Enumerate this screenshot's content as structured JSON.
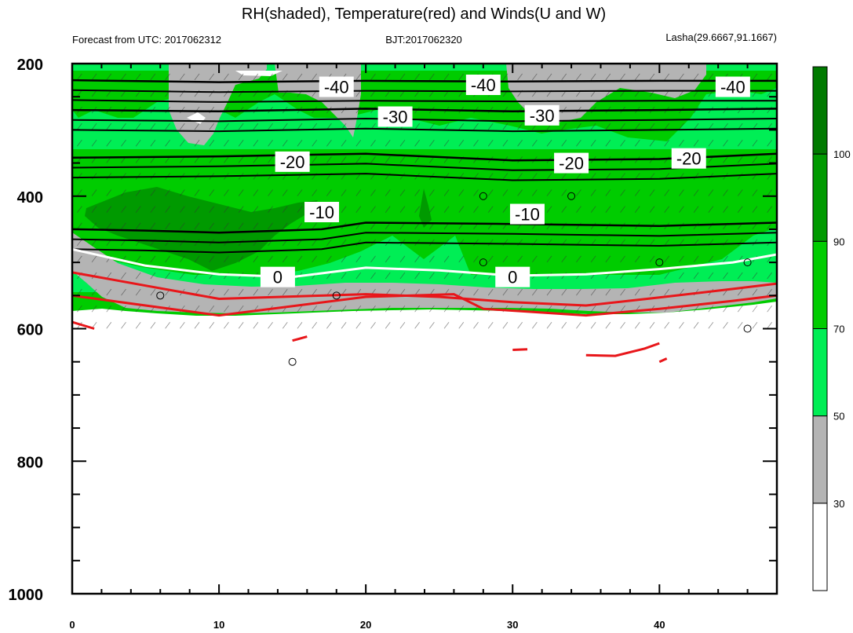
{
  "chart_data": {
    "type": "contour",
    "title": "RH(shaded), Temperature(red) and Winds(U and W)",
    "subtitle_left": "Forecast from UTC: 2017062312",
    "subtitle_center": "BJT:2017062320",
    "subtitle_right": "Lasha(29.6667,91.1667)",
    "x_ticks": [
      "0",
      "10",
      "20",
      "30",
      "40"
    ],
    "y_ticks": [
      "200",
      "400",
      "600",
      "800",
      "1000"
    ],
    "xlim": [
      0,
      48
    ],
    "ylim": [
      1000,
      200
    ],
    "colorbar": {
      "levels": [
        "30",
        "50",
        "70",
        "90",
        "100"
      ],
      "colors": [
        "#ffffff",
        "#b4b4b4",
        "#00ee55",
        "#00cc00",
        "#009a00",
        "#007a00"
      ]
    },
    "temperature_contours": [
      {
        "value": -40,
        "label": "-40",
        "y": [
          [
            0,
            225
          ],
          [
            10,
            228
          ],
          [
            20,
            226
          ],
          [
            30,
            227
          ],
          [
            40,
            226
          ],
          [
            48,
            226
          ]
        ],
        "labels_at": [
          [
            18,
            235
          ],
          [
            28,
            232
          ],
          [
            45,
            235
          ]
        ]
      },
      {
        "value": -30,
        "label": "-30",
        "y": [
          [
            0,
            270
          ],
          [
            10,
            272
          ],
          [
            20,
            268
          ],
          [
            30,
            272
          ],
          [
            40,
            270
          ],
          [
            48,
            268
          ]
        ],
        "labels_at": [
          [
            22,
            280
          ],
          [
            32,
            278
          ]
        ]
      },
      {
        "value": -20,
        "label": "-20",
        "y": [
          [
            0,
            342
          ],
          [
            10,
            340
          ],
          [
            20,
            336
          ],
          [
            30,
            346
          ],
          [
            40,
            344
          ],
          [
            48,
            336
          ]
        ],
        "labels_at": [
          [
            15,
            348
          ],
          [
            34,
            350
          ],
          [
            42,
            343
          ]
        ]
      },
      {
        "value": -10,
        "label": "-10",
        "y": [
          [
            0,
            450
          ],
          [
            5,
            452
          ],
          [
            10,
            455
          ],
          [
            17,
            450
          ],
          [
            20,
            440
          ],
          [
            30,
            442
          ],
          [
            40,
            445
          ],
          [
            48,
            440
          ]
        ],
        "labels_at": [
          [
            17,
            424
          ],
          [
            31,
            427
          ]
        ]
      },
      {
        "value": 0,
        "label": "0",
        "y": [
          [
            0,
            480
          ],
          [
            5,
            505
          ],
          [
            10,
            518
          ],
          [
            15,
            522
          ],
          [
            20,
            508
          ],
          [
            25,
            512
          ],
          [
            30,
            520
          ],
          [
            35,
            518
          ],
          [
            40,
            510
          ],
          [
            45,
            500
          ],
          [
            48,
            488
          ]
        ],
        "labels_at": [
          [
            14,
            522
          ],
          [
            30,
            522
          ]
        ]
      }
    ],
    "warm_contours_y": [
      [
        [
          0,
          515
        ],
        [
          5,
          535
        ],
        [
          10,
          555
        ],
        [
          20,
          548
        ],
        [
          25,
          552
        ],
        [
          30,
          560
        ],
        [
          35,
          565
        ],
        [
          40,
          553
        ],
        [
          45,
          540
        ],
        [
          48,
          532
        ]
      ],
      [
        [
          0,
          550
        ],
        [
          5,
          565
        ],
        [
          10,
          580
        ],
        [
          20,
          552
        ],
        [
          26,
          548
        ],
        [
          28,
          570
        ],
        [
          35,
          580
        ],
        [
          40,
          570
        ],
        [
          45,
          558
        ],
        [
          48,
          550
        ]
      ]
    ],
    "wind_circles": [
      [
        6,
        550
      ],
      [
        15,
        650
      ],
      [
        18,
        550
      ],
      [
        28,
        400
      ],
      [
        28,
        500
      ],
      [
        34,
        400
      ],
      [
        40,
        500
      ],
      [
        46,
        500
      ],
      [
        46,
        600
      ]
    ]
  }
}
